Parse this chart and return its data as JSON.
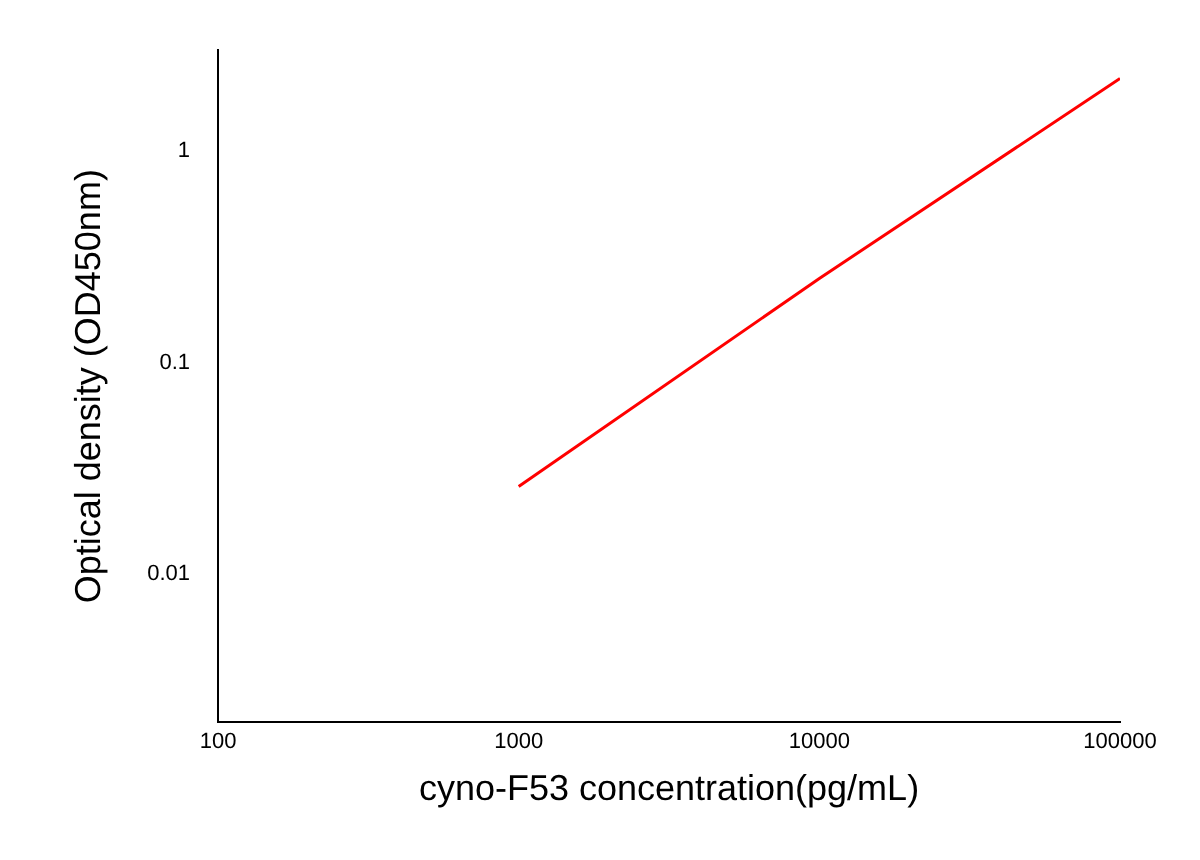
{
  "chart_data": {
    "type": "line",
    "xlabel": "cyno-F53 concentration(pg/mL)",
    "ylabel": "Optical density (OD450nm)",
    "log": "xy",
    "xlim": [
      100,
      100000
    ],
    "xticks": [
      100,
      1000,
      10000,
      100000
    ],
    "ylim": [
      0.002,
      3
    ],
    "yticks": [
      0.01,
      0.1,
      1
    ],
    "x": [
      1000,
      10000,
      100000
    ],
    "series": [
      {
        "color": "#ff0000",
        "values": [
          0.026,
          0.25,
          2.2
        ]
      }
    ],
    "grid": false,
    "legend": false,
    "marker": "none",
    "line_style": "solid"
  }
}
